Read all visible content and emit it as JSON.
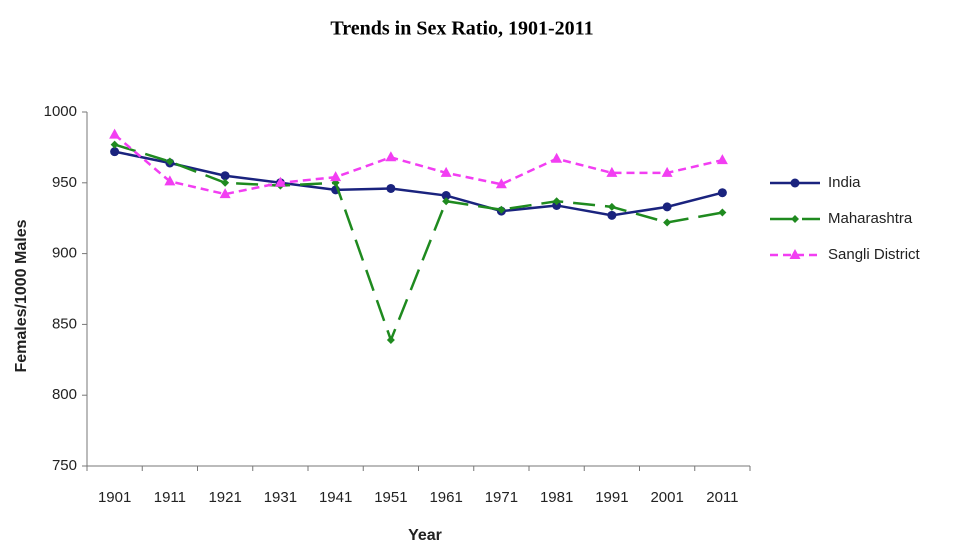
{
  "chart_data": {
    "type": "line",
    "title": "Trends in Sex Ratio, 1901-2011",
    "x_label": "Year",
    "y_label": "Females/1000 Males",
    "categories": [
      "1901",
      "1911",
      "1921",
      "1931",
      "1941",
      "1951",
      "1961",
      "1971",
      "1981",
      "1991",
      "2001",
      "2011"
    ],
    "ylim": [
      750,
      1000
    ],
    "yticks": [
      750,
      800,
      850,
      900,
      950,
      1000
    ],
    "legend": "right",
    "series": [
      {
        "name": "India",
        "color": "#1a237e",
        "line_style": "solid",
        "marker": "circle",
        "values": [
          972,
          964,
          955,
          950,
          945,
          946,
          941,
          930,
          934,
          927,
          933,
          943
        ]
      },
      {
        "name": "Maharashtra",
        "color": "#1f8a1f",
        "line_style": "long-dash",
        "marker": "diamond",
        "values": [
          977,
          965,
          950,
          948,
          950,
          839,
          937,
          931,
          937,
          933,
          922,
          929
        ]
      },
      {
        "name": "Sangli District",
        "color": "#f23ef2",
        "line_style": "short-dash",
        "marker": "triangle",
        "values": [
          984,
          951,
          942,
          950,
          954,
          968,
          957,
          949,
          967,
          957,
          957,
          966
        ]
      }
    ]
  }
}
